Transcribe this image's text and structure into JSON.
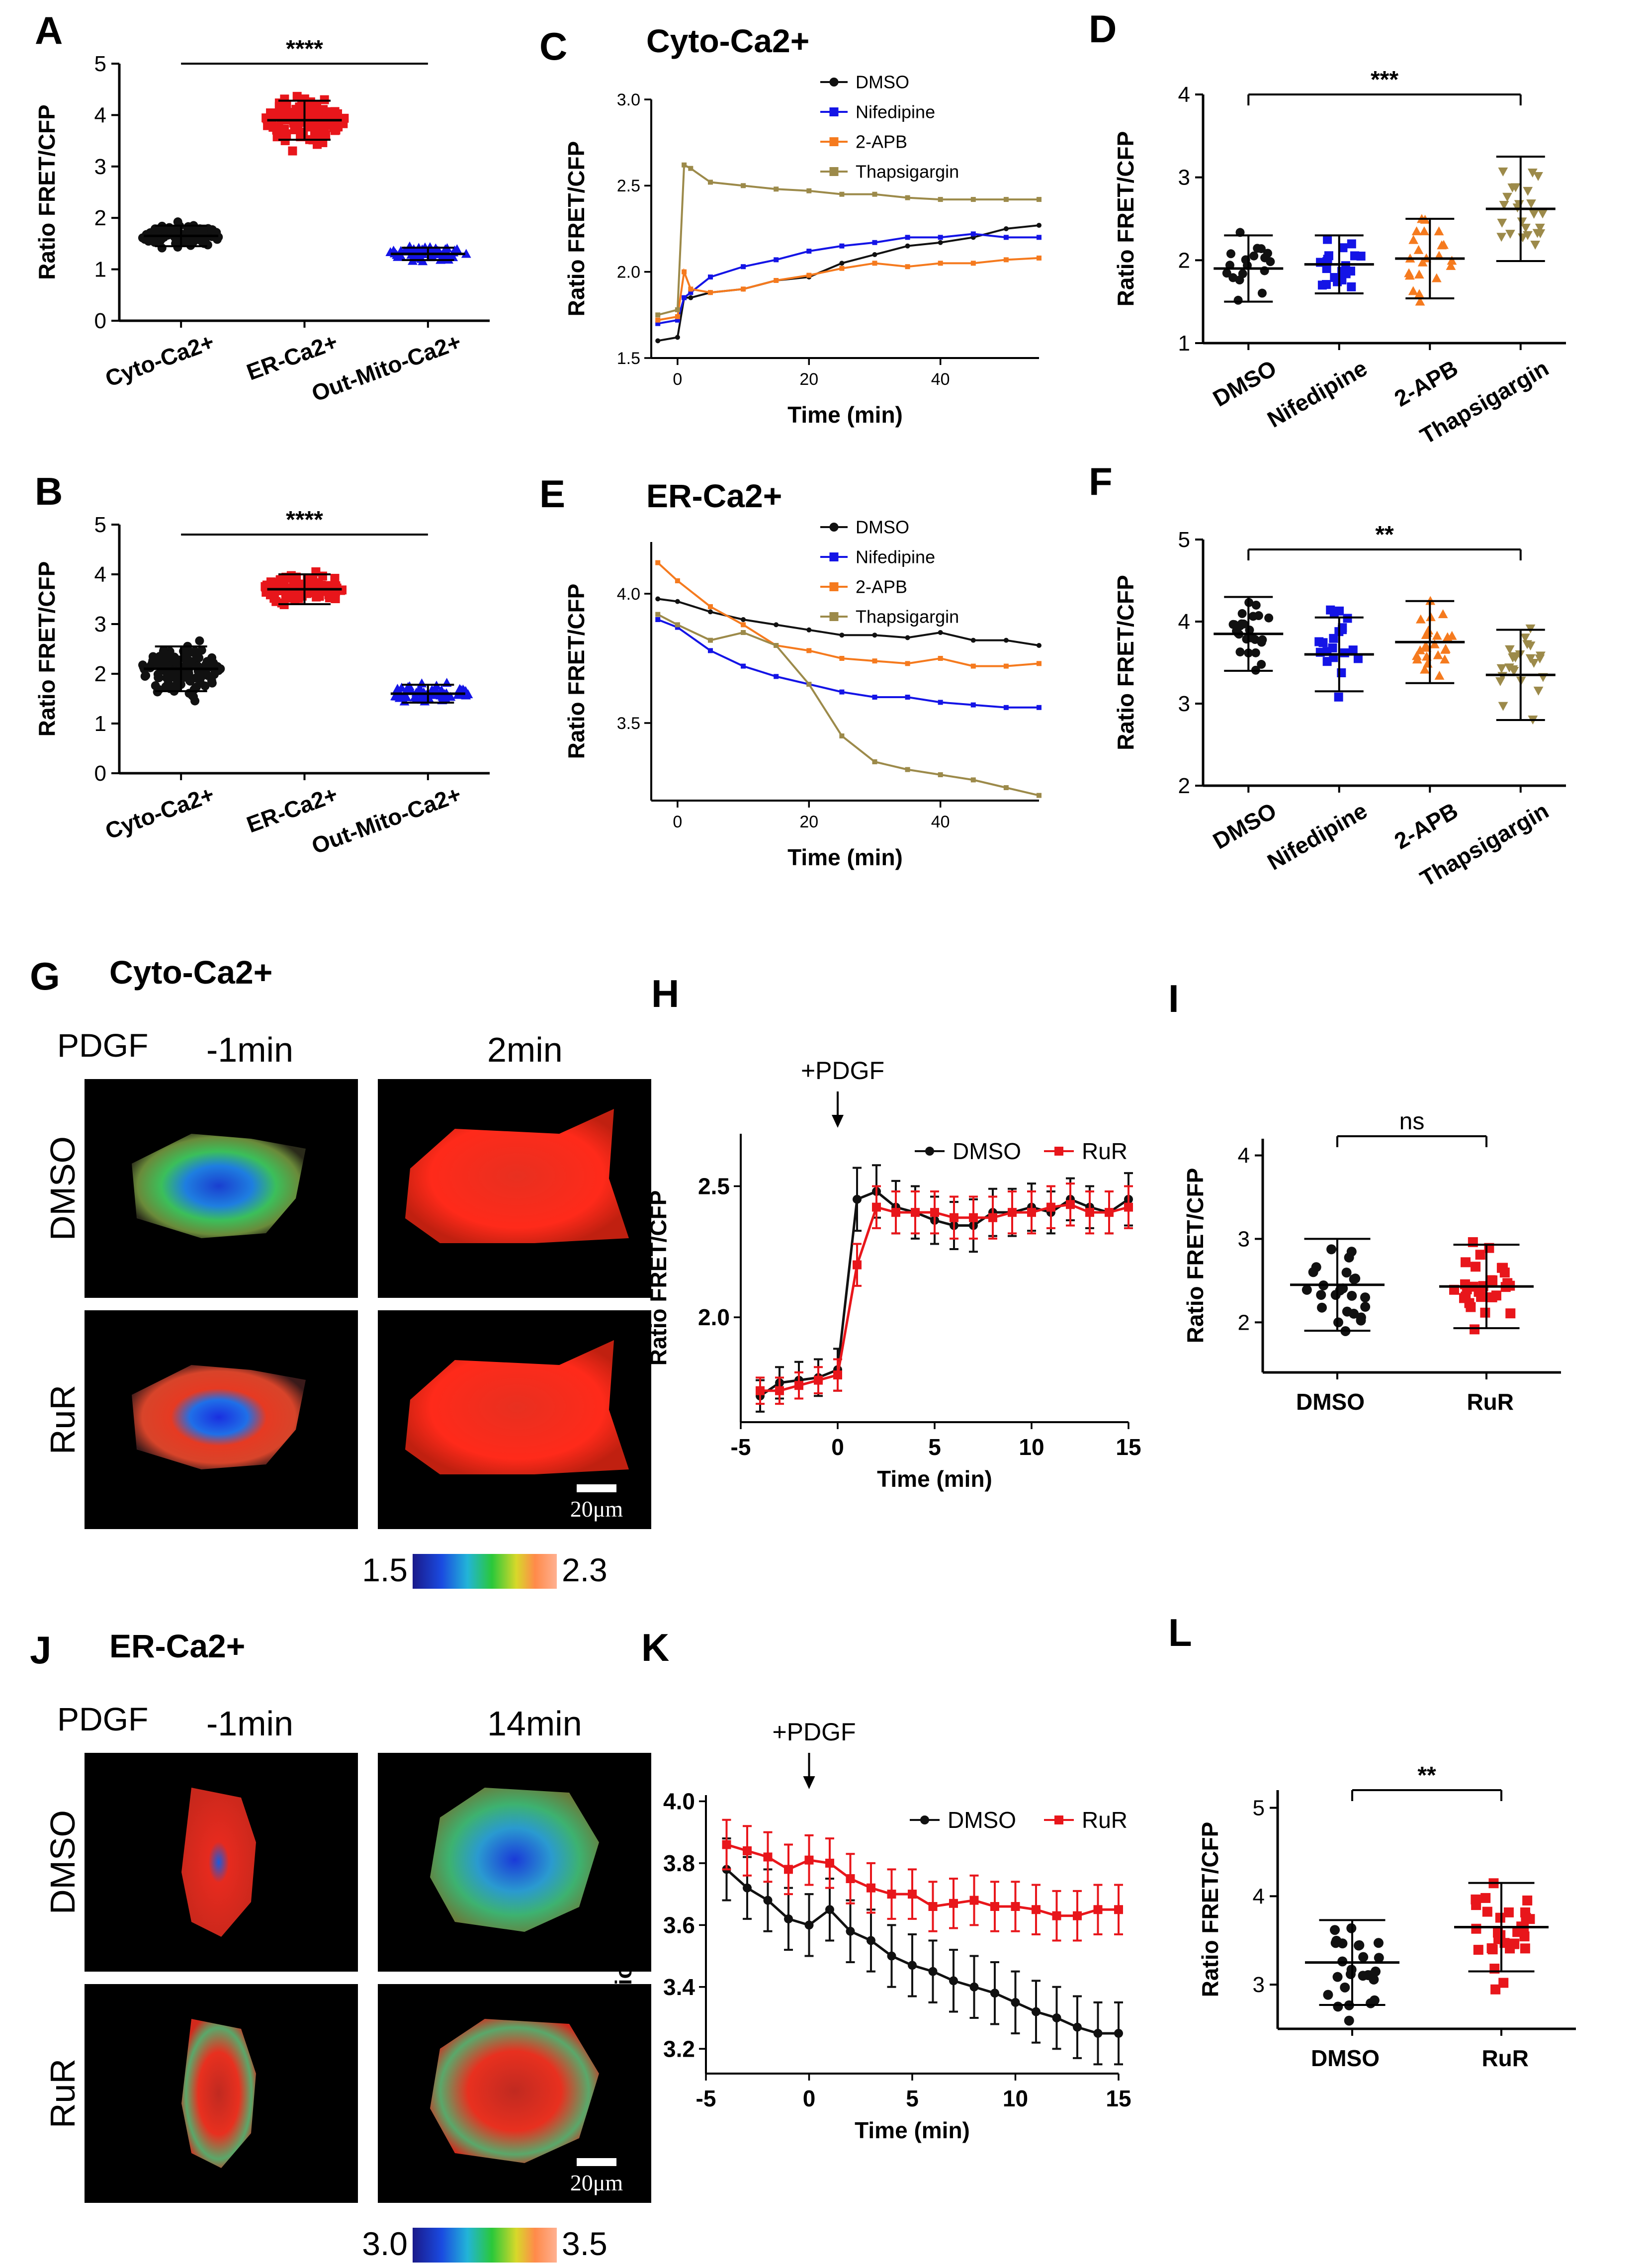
{
  "panels": {
    "A": {
      "letter": "A",
      "ylabel": "Ratio FRET/CFP",
      "yticks": [
        "0",
        "1",
        "2",
        "3",
        "4",
        "5"
      ],
      "categories": [
        "Cyto-Ca2+",
        "ER-Ca2+",
        "Out-Mito-Ca2+"
      ],
      "significance": "****"
    },
    "B": {
      "letter": "B",
      "ylabel": "Ratio FRET/CFP",
      "yticks": [
        "0",
        "1",
        "2",
        "3",
        "4",
        "5"
      ],
      "categories": [
        "Cyto-Ca2+",
        "ER-Ca2+",
        "Out-Mito-Ca2+"
      ],
      "significance": "****"
    },
    "C": {
      "letter": "C",
      "title": "Cyto-Ca2+",
      "ylabel": "Ratio FRET/CFP",
      "xlabel": "Time (min)",
      "yticks": [
        "1.5",
        "2.0",
        "2.5",
        "3.0"
      ],
      "xticks": [
        "0",
        "20",
        "40"
      ],
      "legend": [
        "DMSO",
        "Nifedipine",
        "2-APB",
        "Thapsigargin"
      ]
    },
    "D": {
      "letter": "D",
      "ylabel": "Ratio FRET/CFP",
      "yticks": [
        "1",
        "2",
        "3",
        "4"
      ],
      "categories": [
        "DMSO",
        "Nifedipine",
        "2-APB",
        "Thapsigargin"
      ],
      "significance": "***"
    },
    "E": {
      "letter": "E",
      "title": "ER-Ca2+",
      "ylabel": "Ratio FRET/CFP",
      "xlabel": "Time (min)",
      "yticks": [
        "3.5",
        "4.0"
      ],
      "xticks": [
        "0",
        "20",
        "40"
      ],
      "legend": [
        "DMSO",
        "Nifedipine",
        "2-APB",
        "Thapsigargin"
      ]
    },
    "F": {
      "letter": "F",
      "ylabel": "Ratio FRET/CFP",
      "yticks": [
        "2",
        "3",
        "4",
        "5"
      ],
      "categories": [
        "DMSO",
        "Nifedipine",
        "2-APB",
        "Thapsigargin"
      ],
      "significance": "**"
    },
    "G": {
      "letter": "G",
      "title": "Cyto-Ca2+",
      "stim": "PDGF",
      "t1": "-1min",
      "t2": "2min",
      "row1": "DMSO",
      "row2": "RuR",
      "scale": "20μm",
      "cbar_min": "1.5",
      "cbar_max": "2.3"
    },
    "H": {
      "letter": "H",
      "ylabel": "Ratio FRET/CFP",
      "xlabel": "Time (min)",
      "yticks": [
        "2.0",
        "2.5"
      ],
      "xticks": [
        "-5",
        "0",
        "5",
        "10",
        "15"
      ],
      "annotation": "+PDGF",
      "legend": [
        "DMSO",
        "RuR"
      ]
    },
    "I": {
      "letter": "I",
      "ylabel": "Ratio FRET/CFP",
      "yticks": [
        "2",
        "3",
        "4"
      ],
      "categories": [
        "DMSO",
        "RuR"
      ],
      "significance": "ns"
    },
    "J": {
      "letter": "J",
      "title": "ER-Ca2+",
      "stim": "PDGF",
      "t1": "-1min",
      "t2": "14min",
      "row1": "DMSO",
      "row2": "RuR",
      "scale": "20μm",
      "cbar_min": "3.0",
      "cbar_max": "3.5"
    },
    "K": {
      "letter": "K",
      "ylabel": "Ratio FRET/CFP",
      "xlabel": "Time (min)",
      "yticks": [
        "3.2",
        "3.4",
        "3.6",
        "3.8",
        "4.0"
      ],
      "xticks": [
        "-5",
        "0",
        "5",
        "10",
        "15"
      ],
      "annotation": "+PDGF",
      "legend": [
        "DMSO",
        "RuR"
      ]
    },
    "L": {
      "letter": "L",
      "ylabel": "Ratio FRET/CFP",
      "yticks": [
        "3",
        "4",
        "5"
      ],
      "categories": [
        "DMSO",
        "RuR"
      ],
      "significance": "**"
    }
  },
  "colors": {
    "black": "#111111",
    "red": "#e8161b",
    "blue": "#1414e6",
    "orange": "#f57a1e",
    "olive": "#9c8a4a"
  },
  "chart_data": [
    {
      "panel": "A",
      "type": "scatter",
      "categories": [
        "Cyto-Ca2+",
        "ER-Ca2+",
        "Out-Mito-Ca2+"
      ],
      "mean": [
        1.65,
        3.9,
        1.3
      ],
      "sd": [
        0.2,
        0.38,
        0.12
      ],
      "n": [
        120,
        120,
        60
      ],
      "ylim": [
        0,
        5
      ]
    },
    {
      "panel": "B",
      "type": "scatter",
      "categories": [
        "Cyto-Ca2+",
        "ER-Ca2+",
        "Out-Mito-Ca2+"
      ],
      "mean": [
        2.1,
        3.7,
        1.6
      ],
      "sd": [
        0.45,
        0.3,
        0.18
      ],
      "n": [
        130,
        110,
        70
      ],
      "ylim": [
        0,
        5
      ]
    },
    {
      "panel": "C",
      "type": "line",
      "x": [
        -3,
        0,
        1,
        2,
        5,
        10,
        15,
        20,
        25,
        30,
        35,
        40,
        45,
        50,
        55
      ],
      "series": [
        {
          "name": "DMSO",
          "values": [
            1.6,
            1.62,
            1.85,
            1.85,
            1.88,
            1.9,
            1.95,
            1.97,
            2.05,
            2.1,
            2.15,
            2.17,
            2.2,
            2.25,
            2.27
          ]
        },
        {
          "name": "Nifedipine",
          "values": [
            1.7,
            1.72,
            1.85,
            1.88,
            1.97,
            2.03,
            2.07,
            2.12,
            2.15,
            2.17,
            2.2,
            2.2,
            2.22,
            2.2,
            2.2
          ]
        },
        {
          "name": "2-APB",
          "values": [
            1.72,
            1.74,
            2.0,
            1.9,
            1.88,
            1.9,
            1.95,
            1.98,
            2.02,
            2.05,
            2.03,
            2.05,
            2.05,
            2.07,
            2.08
          ]
        },
        {
          "name": "Thapsigargin",
          "values": [
            1.75,
            1.78,
            2.62,
            2.6,
            2.52,
            2.5,
            2.48,
            2.47,
            2.45,
            2.45,
            2.43,
            2.42,
            2.42,
            2.42,
            2.42
          ]
        }
      ],
      "xlim": [
        -4,
        55
      ],
      "ylim": [
        1.5,
        3.0
      ]
    },
    {
      "panel": "D",
      "type": "scatter",
      "categories": [
        "DMSO",
        "Nifedipine",
        "2-APB",
        "Thapsigargin"
      ],
      "mean": [
        1.9,
        1.95,
        2.02,
        2.62
      ],
      "sd": [
        0.4,
        0.35,
        0.48,
        0.63
      ],
      "n": [
        18,
        20,
        22,
        24
      ],
      "ylim": [
        1,
        4
      ]
    },
    {
      "panel": "E",
      "type": "line",
      "x": [
        -3,
        0,
        5,
        10,
        15,
        20,
        25,
        30,
        35,
        40,
        45,
        50,
        55
      ],
      "series": [
        {
          "name": "DMSO",
          "values": [
            3.98,
            3.97,
            3.93,
            3.9,
            3.88,
            3.86,
            3.84,
            3.84,
            3.83,
            3.85,
            3.82,
            3.82,
            3.8
          ]
        },
        {
          "name": "Nifedipine",
          "values": [
            3.9,
            3.87,
            3.78,
            3.72,
            3.68,
            3.65,
            3.62,
            3.6,
            3.6,
            3.58,
            3.57,
            3.56,
            3.56
          ]
        },
        {
          "name": "2-APB",
          "values": [
            4.12,
            4.05,
            3.95,
            3.88,
            3.8,
            3.78,
            3.75,
            3.74,
            3.73,
            3.75,
            3.72,
            3.72,
            3.73
          ]
        },
        {
          "name": "Thapsigargin",
          "values": [
            3.92,
            3.88,
            3.82,
            3.85,
            3.8,
            3.65,
            3.45,
            3.35,
            3.32,
            3.3,
            3.28,
            3.25,
            3.22
          ]
        }
      ],
      "xlim": [
        -4,
        55
      ],
      "ylim": [
        3.2,
        4.2
      ]
    },
    {
      "panel": "F",
      "type": "scatter",
      "categories": [
        "DMSO",
        "Nifedipine",
        "2-APB",
        "Thapsigargin"
      ],
      "mean": [
        3.85,
        3.6,
        3.75,
        3.35
      ],
      "sd": [
        0.45,
        0.45,
        0.5,
        0.55
      ],
      "n": [
        26,
        20,
        24,
        24
      ],
      "ylim": [
        2,
        5
      ]
    },
    {
      "panel": "H",
      "type": "line",
      "x": [
        -4,
        -3,
        -2,
        -1,
        0,
        1,
        2,
        3,
        4,
        5,
        6,
        7,
        8,
        9,
        10,
        11,
        12,
        13,
        14,
        15
      ],
      "series": [
        {
          "name": "DMSO",
          "values": [
            1.7,
            1.75,
            1.76,
            1.77,
            1.8,
            2.45,
            2.48,
            2.42,
            2.4,
            2.37,
            2.35,
            2.35,
            2.4,
            2.4,
            2.42,
            2.4,
            2.45,
            2.42,
            2.4,
            2.45
          ],
          "err": [
            0.06,
            0.06,
            0.07,
            0.07,
            0.08,
            0.12,
            0.1,
            0.1,
            0.1,
            0.09,
            0.09,
            0.1,
            0.09,
            0.09,
            0.09,
            0.08,
            0.08,
            0.08,
            0.08,
            0.1
          ]
        },
        {
          "name": "RuR",
          "values": [
            1.72,
            1.72,
            1.74,
            1.76,
            1.78,
            2.2,
            2.42,
            2.4,
            2.4,
            2.4,
            2.38,
            2.38,
            2.38,
            2.4,
            2.4,
            2.42,
            2.43,
            2.4,
            2.4,
            2.42
          ],
          "err": [
            0.05,
            0.05,
            0.05,
            0.05,
            0.06,
            0.08,
            0.08,
            0.08,
            0.08,
            0.08,
            0.08,
            0.08,
            0.08,
            0.08,
            0.08,
            0.08,
            0.08,
            0.08,
            0.08,
            0.08
          ]
        }
      ],
      "xlim": [
        -5,
        15
      ],
      "ylim": [
        1.6,
        2.7
      ]
    },
    {
      "panel": "I",
      "type": "scatter",
      "categories": [
        "DMSO",
        "RuR"
      ],
      "mean": [
        2.45,
        2.43
      ],
      "sd": [
        0.55,
        0.5
      ],
      "n": [
        24,
        30
      ],
      "ylim": [
        1.4,
        4.2
      ]
    },
    {
      "panel": "K",
      "type": "line",
      "x": [
        -4,
        -3,
        -2,
        -1,
        0,
        1,
        2,
        3,
        4,
        5,
        6,
        7,
        8,
        9,
        10,
        11,
        12,
        13,
        14,
        15
      ],
      "series": [
        {
          "name": "DMSO",
          "values": [
            3.78,
            3.72,
            3.68,
            3.62,
            3.6,
            3.65,
            3.58,
            3.55,
            3.5,
            3.47,
            3.45,
            3.42,
            3.4,
            3.38,
            3.35,
            3.32,
            3.3,
            3.27,
            3.25,
            3.25
          ],
          "err": [
            0.1,
            0.1,
            0.1,
            0.1,
            0.1,
            0.1,
            0.1,
            0.1,
            0.1,
            0.1,
            0.1,
            0.1,
            0.1,
            0.1,
            0.1,
            0.1,
            0.1,
            0.1,
            0.1,
            0.1
          ]
        },
        {
          "name": "RuR",
          "values": [
            3.86,
            3.84,
            3.82,
            3.78,
            3.81,
            3.8,
            3.75,
            3.72,
            3.7,
            3.7,
            3.66,
            3.67,
            3.68,
            3.66,
            3.66,
            3.65,
            3.63,
            3.63,
            3.65,
            3.65
          ],
          "err": [
            0.08,
            0.08,
            0.08,
            0.08,
            0.08,
            0.08,
            0.08,
            0.08,
            0.08,
            0.08,
            0.08,
            0.08,
            0.08,
            0.08,
            0.08,
            0.08,
            0.08,
            0.08,
            0.08,
            0.08
          ]
        }
      ],
      "xlim": [
        -5,
        15
      ],
      "ylim": [
        3.12,
        4.02
      ]
    },
    {
      "panel": "L",
      "type": "scatter",
      "categories": [
        "DMSO",
        "RuR"
      ],
      "mean": [
        3.25,
        3.65
      ],
      "sd": [
        0.48,
        0.5
      ],
      "n": [
        26,
        30
      ],
      "ylim": [
        2.5,
        5.2
      ]
    }
  ]
}
